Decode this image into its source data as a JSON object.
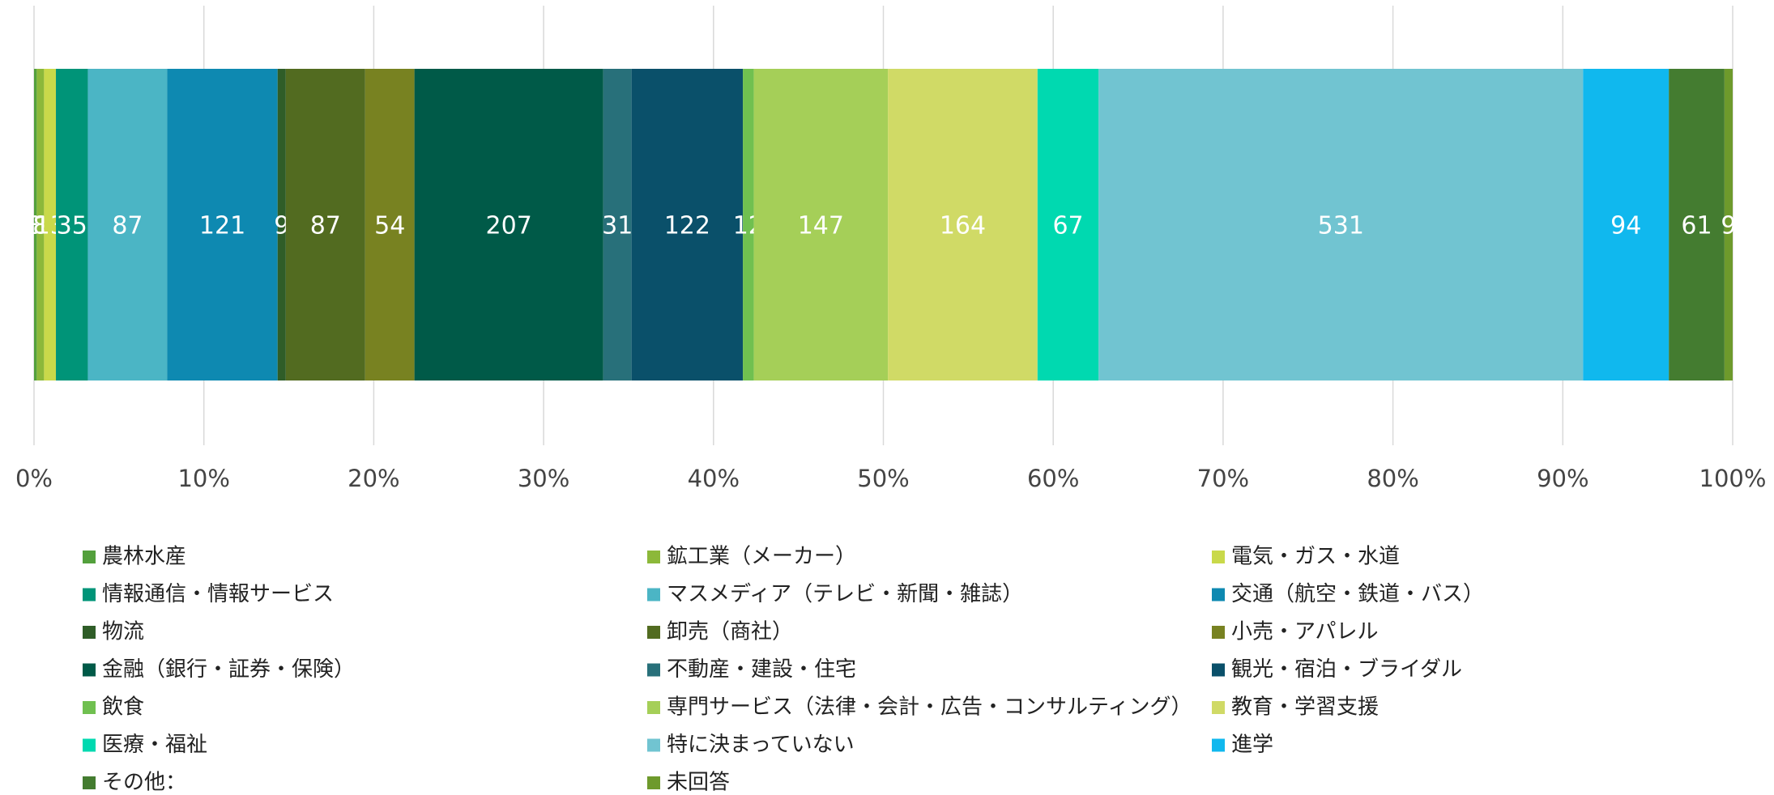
{
  "chart_data": {
    "type": "bar",
    "orientation": "horizontal",
    "stacking": "percent",
    "xlim": [
      0,
      100
    ],
    "xticks": [
      {
        "value": 0,
        "label": "0%"
      },
      {
        "value": 10,
        "label": "10%"
      },
      {
        "value": 20,
        "label": "20%"
      },
      {
        "value": 30,
        "label": "30%"
      },
      {
        "value": 40,
        "label": "40%"
      },
      {
        "value": 50,
        "label": "50%"
      },
      {
        "value": 60,
        "label": "60%"
      },
      {
        "value": 70,
        "label": "70%"
      },
      {
        "value": 80,
        "label": "80%"
      },
      {
        "value": 90,
        "label": "90%"
      },
      {
        "value": 100,
        "label": "100%"
      }
    ],
    "grid": true,
    "legend": "bottom",
    "series": [
      {
        "name": "農林水産",
        "color": "#53a03c",
        "values": [
          3
        ]
      },
      {
        "name": "鉱工業（メーカー）",
        "color": "#8cb83a",
        "values": [
          8
        ]
      },
      {
        "name": "電気・ガス・水道",
        "color": "#c9d94a",
        "values": [
          13
        ]
      },
      {
        "name": "情報通信・情報サービス",
        "color": "#009478",
        "values": [
          35
        ]
      },
      {
        "name": "マスメディア（テレビ・新聞・雑誌）",
        "color": "#4bb5c5",
        "values": [
          87
        ]
      },
      {
        "name": "交通（航空・鉄道・バス）",
        "color": "#0e89b1",
        "values": [
          121
        ]
      },
      {
        "name": "物流",
        "color": "#2f5d28",
        "values": [
          9
        ]
      },
      {
        "name": "卸売（商社）",
        "color": "#526b20",
        "values": [
          87
        ]
      },
      {
        "name": "小売・アパレル",
        "color": "#788221",
        "values": [
          54
        ]
      },
      {
        "name": "金融（銀行・証券・保険）",
        "color": "#005a48",
        "values": [
          207
        ]
      },
      {
        "name": "不動産・建設・住宅",
        "color": "#28707a",
        "values": [
          31
        ]
      },
      {
        "name": "観光・宿泊・ブライダル",
        "color": "#0a506a",
        "values": [
          122
        ]
      },
      {
        "name": "飲食",
        "color": "#70c050",
        "values": [
          12
        ]
      },
      {
        "name": "専門サービス（法律・会計・広告・コンサルティング）",
        "color": "#a5cf58",
        "values": [
          147
        ]
      },
      {
        "name": "教育・学習支援",
        "color": "#d0da66",
        "values": [
          164
        ]
      },
      {
        "name": "医療・福祉",
        "color": "#00d9b0",
        "values": [
          67
        ]
      },
      {
        "name": "特に決まっていない",
        "color": "#71c4d1",
        "values": [
          531
        ]
      },
      {
        "name": "進学",
        "color": "#10b8ee",
        "values": [
          94
        ]
      },
      {
        "name": "その他：",
        "color": "#447c30",
        "values": [
          61
        ]
      },
      {
        "name": "未回答",
        "color": "#6e9a2c",
        "values": [
          9
        ]
      }
    ]
  }
}
